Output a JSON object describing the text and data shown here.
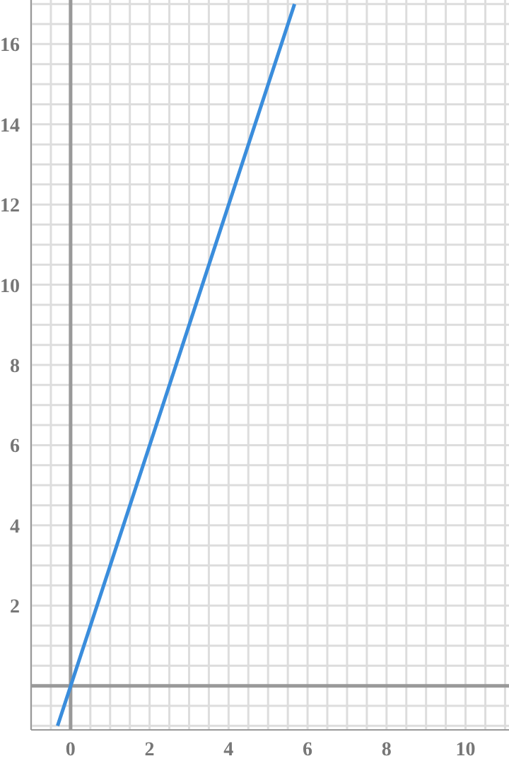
{
  "chart_data": {
    "type": "line",
    "x": [
      -0.33,
      5.67
    ],
    "series": [
      {
        "color": "#3a8ddc",
        "values": [
          -1,
          17
        ]
      }
    ],
    "xlim": [
      -1,
      11.1
    ],
    "ylim": [
      -1.1,
      17.1
    ],
    "xticks": [
      {
        "value": -1,
        "label": null
      },
      {
        "value": -0.5,
        "label": null
      },
      {
        "value": 0,
        "label": "0"
      },
      {
        "value": 0.5,
        "label": null
      },
      {
        "value": 1,
        "label": null
      },
      {
        "value": 1.5,
        "label": null
      },
      {
        "value": 2,
        "label": "2"
      },
      {
        "value": 2.5,
        "label": null
      },
      {
        "value": 3,
        "label": null
      },
      {
        "value": 3.5,
        "label": null
      },
      {
        "value": 4,
        "label": "4"
      },
      {
        "value": 4.5,
        "label": null
      },
      {
        "value": 5,
        "label": null
      },
      {
        "value": 5.5,
        "label": null
      },
      {
        "value": 6,
        "label": "6"
      },
      {
        "value": 6.5,
        "label": null
      },
      {
        "value": 7,
        "label": null
      },
      {
        "value": 7.5,
        "label": null
      },
      {
        "value": 8,
        "label": "8"
      },
      {
        "value": 8.5,
        "label": null
      },
      {
        "value": 9,
        "label": null
      },
      {
        "value": 9.5,
        "label": null
      },
      {
        "value": 10,
        "label": "10"
      },
      {
        "value": 10.5,
        "label": null
      },
      {
        "value": 11,
        "label": null
      }
    ],
    "yticks": [
      {
        "value": -1,
        "label": null
      },
      {
        "value": -0.5,
        "label": null
      },
      {
        "value": 0,
        "label": null
      },
      {
        "value": 0.5,
        "label": null
      },
      {
        "value": 1,
        "label": null
      },
      {
        "value": 1.5,
        "label": null
      },
      {
        "value": 2,
        "label": "2"
      },
      {
        "value": 2.5,
        "label": null
      },
      {
        "value": 3,
        "label": null
      },
      {
        "value": 3.5,
        "label": null
      },
      {
        "value": 4,
        "label": "4"
      },
      {
        "value": 4.5,
        "label": null
      },
      {
        "value": 5,
        "label": null
      },
      {
        "value": 5.5,
        "label": null
      },
      {
        "value": 6,
        "label": "6"
      },
      {
        "value": 6.5,
        "label": null
      },
      {
        "value": 7,
        "label": null
      },
      {
        "value": 7.5,
        "label": null
      },
      {
        "value": 8,
        "label": "8"
      },
      {
        "value": 8.5,
        "label": null
      },
      {
        "value": 9,
        "label": null
      },
      {
        "value": 9.5,
        "label": null
      },
      {
        "value": 10,
        "label": "10"
      },
      {
        "value": 10.5,
        "label": null
      },
      {
        "value": 11,
        "label": null
      },
      {
        "value": 11.5,
        "label": null
      },
      {
        "value": 12,
        "label": "12"
      },
      {
        "value": 12.5,
        "label": null
      },
      {
        "value": 13,
        "label": null
      },
      {
        "value": 13.5,
        "label": null
      },
      {
        "value": 14,
        "label": "14"
      },
      {
        "value": 14.5,
        "label": null
      },
      {
        "value": 15,
        "label": null
      },
      {
        "value": 15.5,
        "label": null
      },
      {
        "value": 16,
        "label": "16"
      },
      {
        "value": 16.5,
        "label": null
      },
      {
        "value": 17,
        "label": null
      }
    ],
    "grid": true,
    "marker": "none",
    "line_style": "solid"
  }
}
